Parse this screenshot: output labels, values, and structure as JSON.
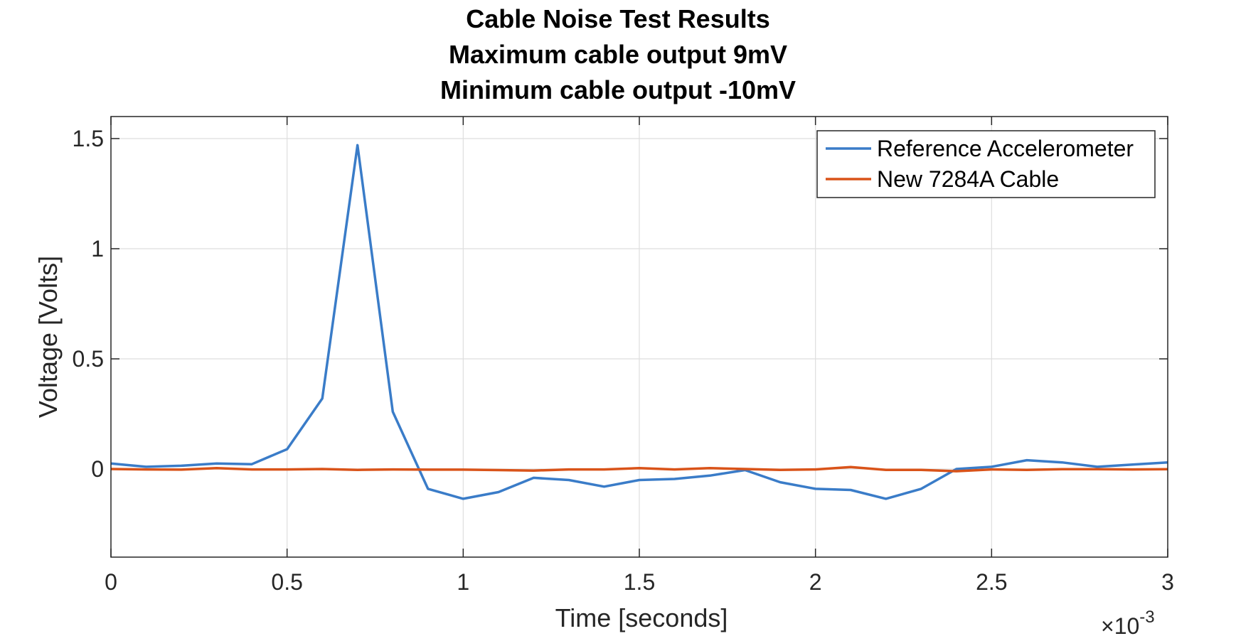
{
  "chart_data": {
    "type": "line",
    "title": [
      "Cable Noise Test Results",
      "Maximum cable output 9mV",
      "Minimum cable output -10mV"
    ],
    "xlabel": "Time [seconds]",
    "ylabel": "Voltage [Volts]",
    "x_exponent_label": "×10",
    "x_exponent_power": "-3",
    "xlim": [
      0,
      0.003
    ],
    "ylim": [
      -0.4,
      1.6
    ],
    "xticks": [
      0,
      0.0005,
      0.001,
      0.0015,
      0.002,
      0.0025,
      0.003
    ],
    "xtick_labels": [
      "0",
      "0.5",
      "1",
      "1.5",
      "2",
      "2.5",
      "3"
    ],
    "yticks": [
      0,
      0.5,
      1,
      1.5
    ],
    "ytick_labels": [
      "0",
      "0.5",
      "1",
      "1.5"
    ],
    "grid": true,
    "legend_position": "top-right",
    "x": [
      0,
      0.0001,
      0.0002,
      0.0003,
      0.0004,
      0.0005,
      0.0006,
      0.0007,
      0.0008,
      0.0009,
      0.001,
      0.0011,
      0.0012,
      0.0013,
      0.0014,
      0.0015,
      0.0016,
      0.0017,
      0.0018,
      0.0019,
      0.002,
      0.0021,
      0.0022,
      0.0023,
      0.0024,
      0.0025,
      0.0026,
      0.0027,
      0.0028,
      0.0029,
      0.003
    ],
    "series": [
      {
        "name": "Reference Accelerometer",
        "color": "#3a7cc8",
        "values": [
          0.025,
          0.01,
          0.015,
          0.025,
          0.022,
          0.09,
          0.32,
          1.47,
          0.26,
          -0.09,
          -0.135,
          -0.105,
          -0.04,
          -0.05,
          -0.08,
          -0.05,
          -0.045,
          -0.03,
          -0.005,
          -0.06,
          -0.09,
          -0.095,
          -0.135,
          -0.09,
          0.0,
          0.01,
          0.04,
          0.03,
          0.01,
          0.02,
          0.03
        ]
      },
      {
        "name": "New 7284A Cable",
        "color": "#d95319",
        "values": [
          0.0,
          -0.002,
          -0.003,
          0.004,
          -0.002,
          -0.002,
          0.0,
          -0.004,
          -0.002,
          -0.003,
          -0.003,
          -0.005,
          -0.007,
          -0.002,
          -0.002,
          0.004,
          -0.002,
          0.004,
          0.0,
          -0.004,
          -0.002,
          0.009,
          -0.004,
          -0.004,
          -0.01,
          -0.002,
          -0.004,
          -0.001,
          -0.001,
          -0.002,
          -0.001
        ]
      }
    ]
  }
}
